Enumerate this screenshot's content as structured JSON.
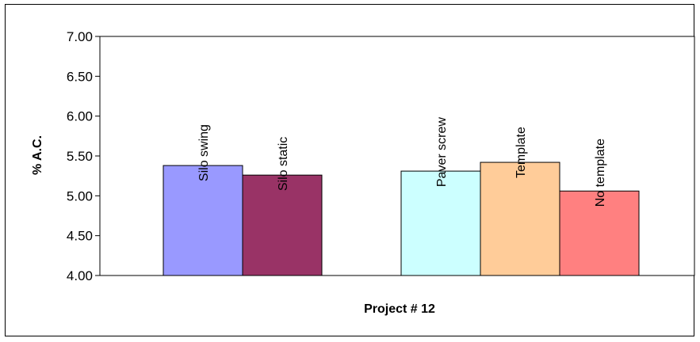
{
  "chart_data": {
    "type": "bar",
    "xlabel": "Project # 12",
    "ylabel": "% A.C.",
    "ylim": [
      4.0,
      7.0
    ],
    "yticks": [
      "4.00",
      "4.50",
      "5.00",
      "5.50",
      "6.00",
      "6.50",
      "7.00"
    ],
    "grid": false,
    "legend": "none",
    "bars": [
      {
        "label": "Silo swing",
        "value": 5.38,
        "color": "#9999FF"
      },
      {
        "label": "Silo static",
        "value": 5.26,
        "color": "#993366"
      },
      {
        "label": "Paver screw",
        "value": 5.31,
        "color": "#CCFFFF"
      },
      {
        "label": "Template",
        "value": 5.42,
        "color": "#FFCC99"
      },
      {
        "label": "No template",
        "value": 5.06,
        "color": "#FF8080"
      }
    ]
  }
}
